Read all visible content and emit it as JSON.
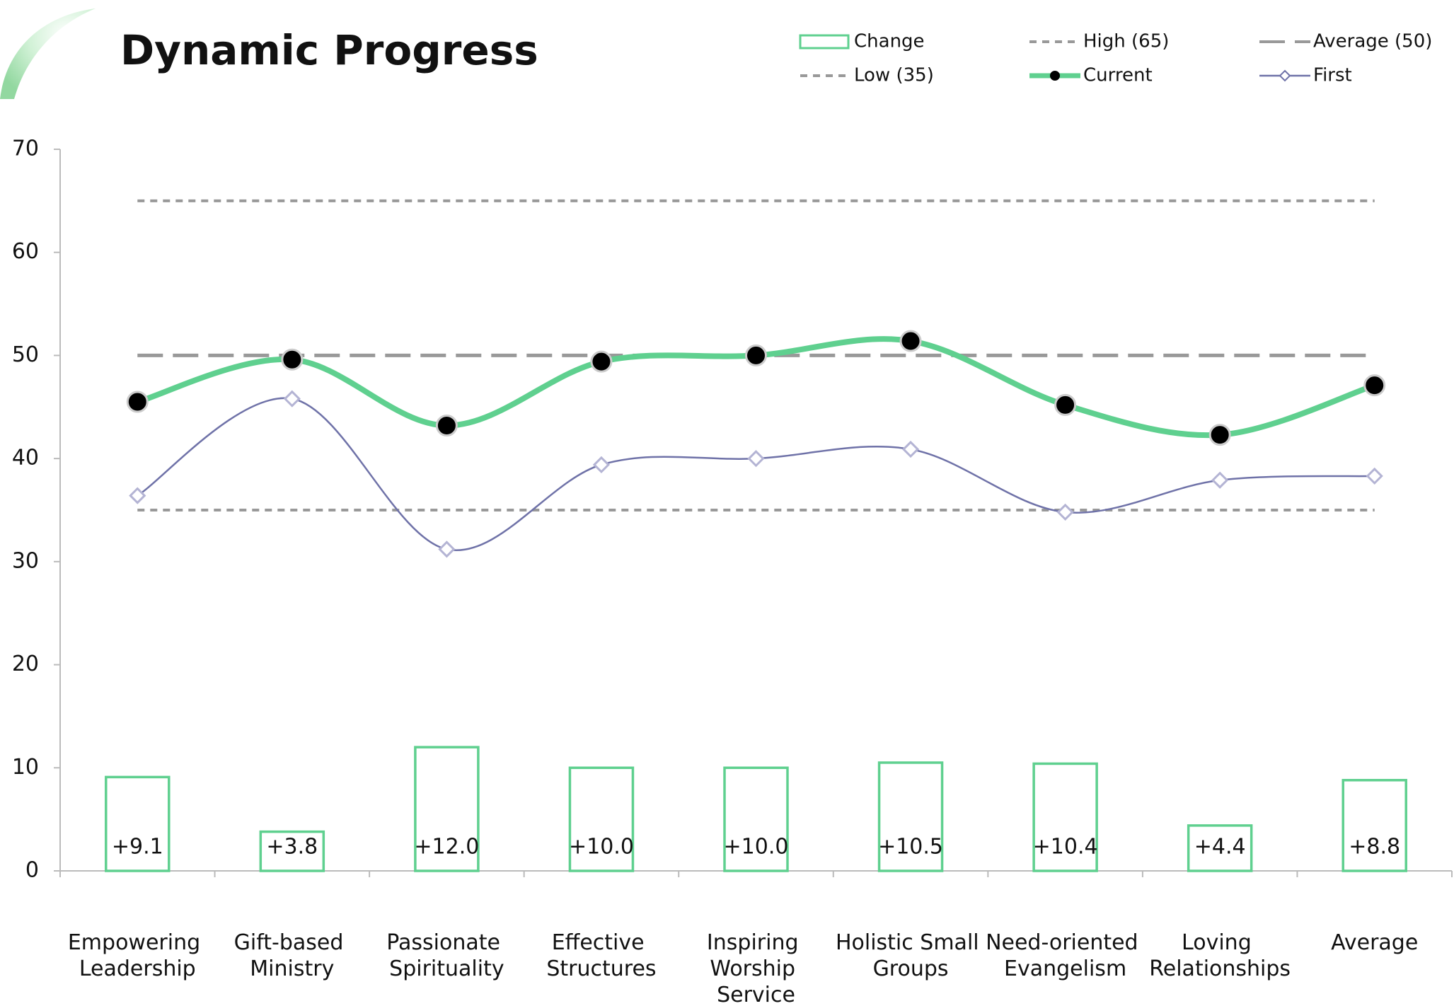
{
  "chart_data": {
    "type": "combo",
    "title": "Dynamic Progress",
    "categories": [
      "Empowering Leadership",
      "Gift-based Ministry",
      "Passionate Spirituality",
      "Effective Structures",
      "Inspiring Worship Service",
      "Holistic Small Groups",
      "Need-oriented Evangelism",
      "Loving Relationships",
      "Average"
    ],
    "series": [
      {
        "name": "Change",
        "type": "bar",
        "color": "#5fd08f",
        "values": [
          9.1,
          3.8,
          12.0,
          10.0,
          10.0,
          10.5,
          10.4,
          4.4,
          8.8
        ],
        "value_labels": [
          "+9.1",
          "+3.8",
          "+12.0",
          "+10.0",
          "+10.0",
          "+10.5",
          "+10.4",
          "+4.4",
          "+8.8"
        ]
      },
      {
        "name": "High (65)",
        "type": "reference",
        "color": "#999999",
        "dash": "short",
        "values": [
          65,
          65,
          65,
          65,
          65,
          65,
          65,
          65,
          65
        ]
      },
      {
        "name": "Average (50)",
        "type": "reference",
        "color": "#999999",
        "dash": "long",
        "values": [
          50,
          50,
          50,
          50,
          50,
          50,
          50,
          50,
          50
        ]
      },
      {
        "name": "Low (35)",
        "type": "reference",
        "color": "#999999",
        "dash": "short",
        "values": [
          35,
          35,
          35,
          35,
          35,
          35,
          35,
          35,
          35
        ]
      },
      {
        "name": "Current",
        "type": "line",
        "color": "#5fd08f",
        "marker": "circle",
        "values": [
          45.5,
          49.6,
          43.2,
          49.4,
          50.0,
          51.4,
          45.2,
          42.3,
          47.1
        ]
      },
      {
        "name": "First",
        "type": "line",
        "color": "#6f72a8",
        "marker": "diamond",
        "values": [
          36.4,
          45.8,
          31.2,
          39.4,
          40.0,
          40.9,
          34.8,
          37.9,
          38.3
        ]
      }
    ],
    "ylim": [
      0,
      70
    ],
    "yticks": [
      0,
      10,
      20,
      30,
      40,
      50,
      60,
      70
    ],
    "grid": false,
    "legend": "top-right"
  }
}
